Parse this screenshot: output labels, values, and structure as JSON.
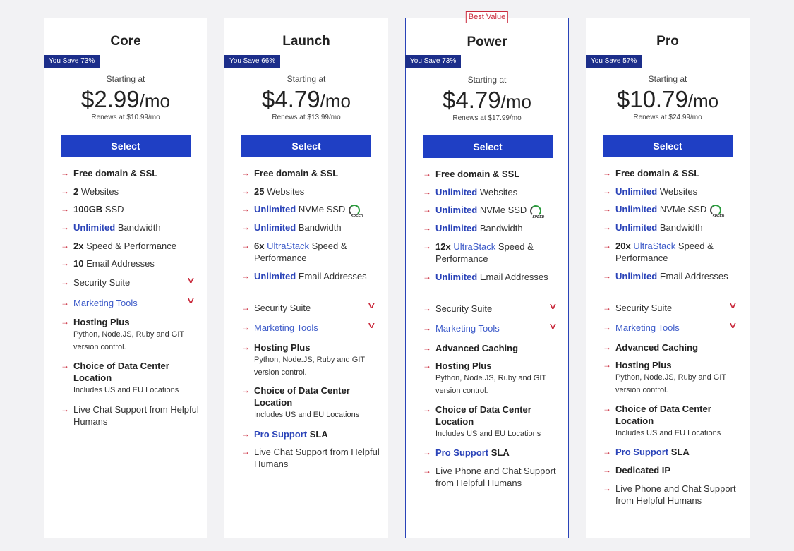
{
  "plans": [
    {
      "name": "Core",
      "badge": "",
      "save": "You Save 73%",
      "starting": "Starting at",
      "price": "$2.99",
      "per": "/mo",
      "renew": "Renews at $10.99/mo",
      "select": "Select",
      "features": [
        {
          "parts": [
            {
              "t": "Free domain & SSL",
              "s": "b"
            }
          ]
        },
        {
          "parts": [
            {
              "t": "2",
              "s": "b"
            },
            {
              "t": " Websites",
              "s": ""
            }
          ]
        },
        {
          "parts": [
            {
              "t": "100GB",
              "s": "b"
            },
            {
              "t": " SSD",
              "s": ""
            }
          ]
        },
        {
          "parts": [
            {
              "t": "Unlimited",
              "s": "blue"
            },
            {
              "t": " Bandwidth",
              "s": ""
            }
          ]
        },
        {
          "parts": [
            {
              "t": "2x",
              "s": "b"
            },
            {
              "t": " Speed & Performance",
              "s": ""
            }
          ]
        },
        {
          "parts": [
            {
              "t": "10",
              "s": "b"
            },
            {
              "t": " Email Addresses",
              "s": ""
            }
          ]
        },
        {
          "parts": [
            {
              "t": "Security Suite",
              "s": ""
            }
          ],
          "dropdown": true
        },
        {
          "parts": [
            {
              "t": "Marketing Tools",
              "s": "lb"
            }
          ],
          "dropdown": true
        },
        {
          "parts": [
            {
              "t": "Hosting Plus",
              "s": "b"
            }
          ],
          "sub": "Python,  Node.JS,   Ruby and GIT version control."
        },
        {
          "parts": [
            {
              "t": "Choice of Data Center Location",
              "s": "b"
            }
          ],
          "sub": "Includes US and EU Locations"
        },
        {
          "parts": [
            {
              "t": "Live Chat Support from Helpful Humans",
              "s": ""
            }
          ]
        }
      ]
    },
    {
      "name": "Launch",
      "badge": "",
      "save": "You Save 66%",
      "starting": "Starting at",
      "price": "$4.79",
      "per": "/mo",
      "renew": "Renews at $13.99/mo",
      "select": "Select",
      "features": [
        {
          "parts": [
            {
              "t": "Free domain & SSL",
              "s": "b"
            }
          ]
        },
        {
          "parts": [
            {
              "t": "25",
              "s": "b"
            },
            {
              "t": " Websites",
              "s": ""
            }
          ]
        },
        {
          "parts": [
            {
              "t": "Unlimited",
              "s": "blue"
            },
            {
              "t": " NVMe SSD",
              "s": ""
            }
          ],
          "speed": true
        },
        {
          "parts": [
            {
              "t": "Unlimited",
              "s": "blue"
            },
            {
              "t": " Bandwidth",
              "s": ""
            }
          ]
        },
        {
          "parts": [
            {
              "t": "6x",
              "s": "b"
            },
            {
              "t": " ",
              "s": ""
            },
            {
              "t": "UltraStack",
              "s": "lb"
            },
            {
              "t": " Speed & Performance",
              "s": ""
            }
          ]
        },
        {
          "parts": [
            {
              "t": "Unlimited",
              "s": "blue"
            },
            {
              "t": " Email Addresses",
              "s": ""
            }
          ]
        },
        {
          "parts": [
            {
              "t": "Security Suite",
              "s": ""
            }
          ],
          "dropdown": true
        },
        {
          "parts": [
            {
              "t": "Marketing Tools",
              "s": "lb"
            }
          ],
          "dropdown": true
        },
        {
          "parts": [
            {
              "t": "Hosting Plus",
              "s": "b"
            }
          ],
          "sub": "Python,  Node.JS,   Ruby and GIT version control."
        },
        {
          "parts": [
            {
              "t": "Choice of Data Center Location",
              "s": "b"
            }
          ],
          "sub": "Includes US and EU Locations"
        },
        {
          "parts": [
            {
              "t": "Pro Support",
              "s": "blue"
            },
            {
              "t": " SLA",
              "s": "b"
            }
          ]
        },
        {
          "parts": [
            {
              "t": "Live Chat Support from Helpful Humans",
              "s": ""
            }
          ]
        }
      ]
    },
    {
      "name": "Power",
      "badge": "Best Value",
      "save": "You Save 73%",
      "starting": "Starting at",
      "price": "$4.79",
      "per": "/mo",
      "renew": "Renews at $17.99/mo",
      "select": "Select",
      "features": [
        {
          "parts": [
            {
              "t": "Free domain & SSL",
              "s": "b"
            }
          ]
        },
        {
          "parts": [
            {
              "t": "Unlimited",
              "s": "blue"
            },
            {
              "t": " Websites",
              "s": ""
            }
          ]
        },
        {
          "parts": [
            {
              "t": "Unlimited",
              "s": "blue"
            },
            {
              "t": " NVMe SSD",
              "s": ""
            }
          ],
          "speed": true
        },
        {
          "parts": [
            {
              "t": "Unlimited",
              "s": "blue"
            },
            {
              "t": " Bandwidth",
              "s": ""
            }
          ]
        },
        {
          "parts": [
            {
              "t": "12x",
              "s": "b"
            },
            {
              "t": " ",
              "s": ""
            },
            {
              "t": "UltraStack",
              "s": "lb"
            },
            {
              "t": " Speed & Performance",
              "s": ""
            }
          ]
        },
        {
          "parts": [
            {
              "t": "Unlimited",
              "s": "blue"
            },
            {
              "t": " Email Addresses",
              "s": ""
            }
          ]
        },
        {
          "parts": [
            {
              "t": "Security Suite",
              "s": ""
            }
          ],
          "dropdown": true
        },
        {
          "parts": [
            {
              "t": "Marketing Tools",
              "s": "lb"
            }
          ],
          "dropdown": true
        },
        {
          "parts": [
            {
              "t": "Advanced Caching",
              "s": "b"
            }
          ]
        },
        {
          "parts": [
            {
              "t": "Hosting Plus",
              "s": "b"
            }
          ],
          "sub": "Python,  Node.JS,   Ruby and GIT version control."
        },
        {
          "parts": [
            {
              "t": "Choice of Data Center Location",
              "s": "b"
            }
          ],
          "sub": "Includes US and EU Locations"
        },
        {
          "parts": [
            {
              "t": "Pro Support",
              "s": "blue"
            },
            {
              "t": " SLA",
              "s": "b"
            }
          ]
        },
        {
          "parts": [
            {
              "t": "Live Phone and Chat Support from Helpful Humans",
              "s": ""
            }
          ]
        }
      ]
    },
    {
      "name": "Pro",
      "badge": "",
      "save": "You Save 57%",
      "starting": "Starting at",
      "price": "$10.79",
      "per": "/mo",
      "renew": "Renews at $24.99/mo",
      "select": "Select",
      "features": [
        {
          "parts": [
            {
              "t": "Free domain & SSL",
              "s": "b"
            }
          ]
        },
        {
          "parts": [
            {
              "t": "Unlimited",
              "s": "blue"
            },
            {
              "t": " Websites",
              "s": ""
            }
          ]
        },
        {
          "parts": [
            {
              "t": "Unlimited",
              "s": "blue"
            },
            {
              "t": " NVMe SSD",
              "s": ""
            }
          ],
          "speed": true
        },
        {
          "parts": [
            {
              "t": "Unlimited",
              "s": "blue"
            },
            {
              "t": " Bandwidth",
              "s": ""
            }
          ]
        },
        {
          "parts": [
            {
              "t": "20x",
              "s": "b"
            },
            {
              "t": " ",
              "s": ""
            },
            {
              "t": "UltraStack",
              "s": "lb"
            },
            {
              "t": " Speed & Performance",
              "s": ""
            }
          ]
        },
        {
          "parts": [
            {
              "t": "Unlimited",
              "s": "blue"
            },
            {
              "t": " Email Addresses",
              "s": ""
            }
          ]
        },
        {
          "parts": [
            {
              "t": "Security Suite",
              "s": ""
            }
          ],
          "dropdown": true
        },
        {
          "parts": [
            {
              "t": "Marketing Tools",
              "s": "lb"
            }
          ],
          "dropdown": true
        },
        {
          "parts": [
            {
              "t": "Advanced Caching",
              "s": "b"
            }
          ]
        },
        {
          "parts": [
            {
              "t": "Hosting Plus",
              "s": "b"
            }
          ],
          "sub": "Python,  Node.JS,   Ruby and GIT version control."
        },
        {
          "parts": [
            {
              "t": "Choice of Data Center Location",
              "s": "b"
            }
          ],
          "sub": "Includes US and EU Locations"
        },
        {
          "parts": [
            {
              "t": "Pro Support",
              "s": "blue"
            },
            {
              "t": " SLA",
              "s": "b"
            }
          ]
        },
        {
          "parts": [
            {
              "t": "Dedicated IP",
              "s": "b"
            }
          ]
        },
        {
          "parts": [
            {
              "t": "Live Phone and Chat Support from Helpful Humans",
              "s": ""
            }
          ]
        }
      ]
    }
  ],
  "icons": {
    "arrow": "arrow-right-icon",
    "chevron": "chevron-down-icon",
    "speed": "speed-gauge-icon"
  },
  "speed_label": "SPEED",
  "colors": {
    "accent": "#1f3fc4",
    "save_badge": "#1c2e8a",
    "arrow": "#c9293b",
    "highlight": "#2a43b8"
  }
}
